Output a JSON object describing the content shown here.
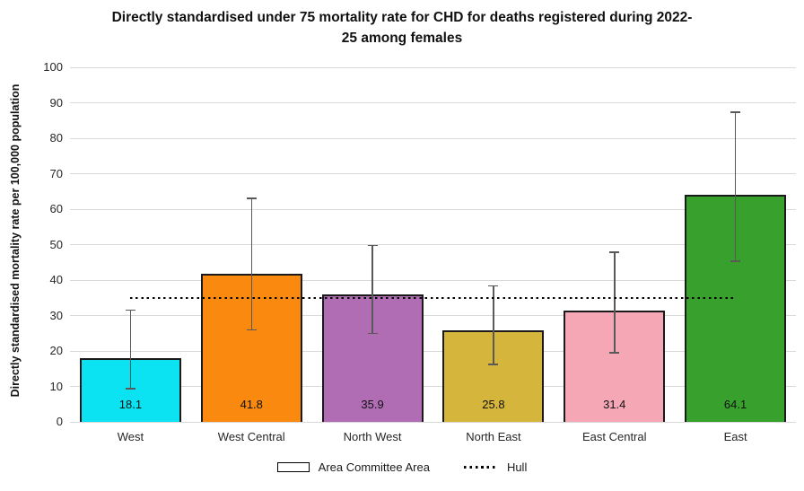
{
  "header": {
    "line1": "Directly standardised under 75 mortality rate for CHD for deaths registered during 2022-",
    "line2": "25 among females"
  },
  "chart_data": {
    "type": "bar",
    "title": "Directly standardised under 75 mortality rate for CHD for deaths registered during 2022-25 among females",
    "xlabel": "",
    "ylabel": "Directly standardised mortality rate per 100,000 population",
    "ylim": [
      0,
      100
    ],
    "y_tick_step": 10,
    "y_ticks": [
      0,
      10,
      20,
      30,
      40,
      50,
      60,
      70,
      80,
      90,
      100
    ],
    "grid": true,
    "legend_position": "bottom",
    "categories": [
      "West",
      "West Central",
      "North West",
      "North East",
      "East Central",
      "East"
    ],
    "series": [
      {
        "name": "Area Committee Area",
        "values": [
          18.1,
          41.8,
          35.9,
          25.8,
          31.4,
          64.1
        ],
        "value_labels": [
          "18.1",
          "41.8",
          "35.9",
          "25.8",
          "31.4",
          "64.1"
        ],
        "bar_colors": [
          "#0be3f2",
          "#fa8a0f",
          "#b06db4",
          "#d6b53c",
          "#f6a7b5",
          "#38a12d"
        ],
        "error_low": [
          9.4,
          25.9,
          25.0,
          16.2,
          19.5,
          45.3
        ],
        "error_high": [
          31.5,
          63.0,
          49.8,
          38.4,
          47.9,
          87.4
        ]
      }
    ],
    "reference_line": {
      "name": "Hull",
      "value": 35,
      "style": "dotted",
      "color": "#000000"
    }
  },
  "legend": {
    "items": [
      {
        "label": "Area Committee Area",
        "swatch": "open-rect"
      },
      {
        "label": "Hull",
        "swatch": "dotted-line"
      }
    ]
  },
  "colors": {
    "background": "#ffffff",
    "gridline": "#d9d9d9",
    "bar_border": "#1a1a1a",
    "error_bar": "#595959",
    "text": "#262626"
  }
}
